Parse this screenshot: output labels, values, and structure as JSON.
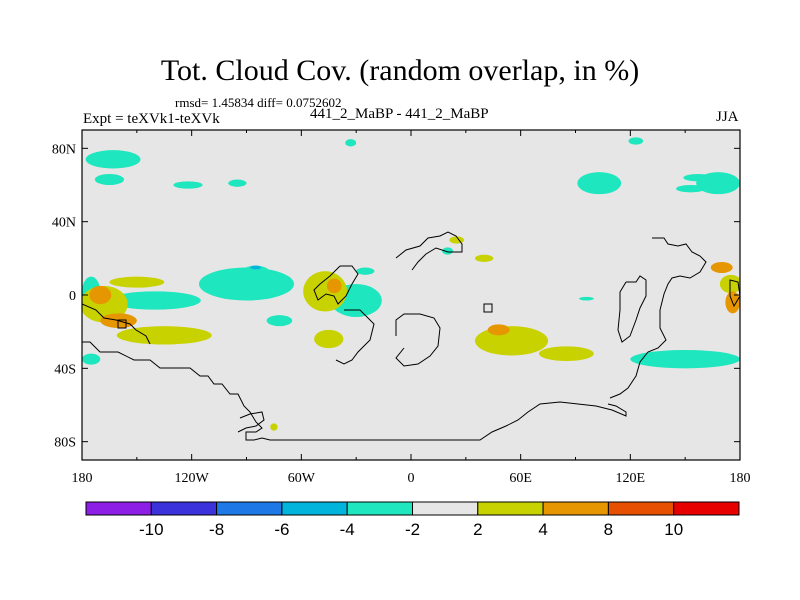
{
  "chart_data": {
    "type": "heatmap",
    "title": "Tot. Cloud Cov. (random overlap, in %)",
    "stats_text": "rmsd= 1.45834 diff= 0.0752602",
    "left_label": "Expt = teXVk1-teXVk",
    "center_label": "441_2_MaBP - 441_2_MaBP",
    "right_label": "JJA",
    "x_range": [
      -180,
      180
    ],
    "y_range": [
      -90,
      90
    ],
    "x_ticks": [
      {
        "value": -180,
        "label": "180"
      },
      {
        "value": -120,
        "label": "120W"
      },
      {
        "value": -60,
        "label": "60W"
      },
      {
        "value": 0,
        "label": "0"
      },
      {
        "value": 60,
        "label": "60E"
      },
      {
        "value": 120,
        "label": "120E"
      },
      {
        "value": 180,
        "label": "180"
      }
    ],
    "y_ticks": [
      {
        "value": 80,
        "label": "80N"
      },
      {
        "value": 40,
        "label": "40N"
      },
      {
        "value": 0,
        "label": "0"
      },
      {
        "value": -40,
        "label": "40S"
      },
      {
        "value": -80,
        "label": "80S"
      }
    ],
    "background_color": "#e6e6e6",
    "colorbar": {
      "labels": [
        "-10",
        "-8",
        "-6",
        "-4",
        "-2",
        "2",
        "4",
        "8",
        "10"
      ],
      "colors": [
        "#8c1ee6",
        "#3c32dc",
        "#1e78e6",
        "#00b4dc",
        "#1ee6be",
        "#e6e6e6",
        "#c8d200",
        "#e69600",
        "#e65000",
        "#e60000"
      ]
    },
    "anomaly_regions": [
      {
        "lon": -163,
        "lat": 74,
        "rlon": 15,
        "rlat": 5,
        "level": -3
      },
      {
        "lon": -165,
        "lat": 63,
        "rlon": 8,
        "rlat": 3,
        "level": -3
      },
      {
        "lon": -95,
        "lat": 61,
        "rlon": 5,
        "rlat": 2,
        "level": -3
      },
      {
        "lon": -122,
        "lat": 60,
        "rlon": 8,
        "rlat": 2,
        "level": -3
      },
      {
        "lon": 103,
        "lat": 61,
        "rlon": 12,
        "rlat": 6,
        "level": -3
      },
      {
        "lon": 168,
        "lat": 61,
        "rlon": 12,
        "rlat": 6,
        "level": -3
      },
      {
        "lon": 157,
        "lat": 64,
        "rlon": 8,
        "rlat": 2,
        "level": -3
      },
      {
        "lon": 153,
        "lat": 58,
        "rlon": 8,
        "rlat": 2,
        "level": -3
      },
      {
        "lon": -33,
        "lat": 83,
        "rlon": 3,
        "rlat": 2,
        "level": -3
      },
      {
        "lon": 123,
        "lat": 84,
        "rlon": 4,
        "rlat": 2,
        "level": -3
      },
      {
        "lon": -175,
        "lat": 2,
        "rlon": 5,
        "rlat": 8,
        "level": -3
      },
      {
        "lon": -140,
        "lat": -3,
        "rlon": 25,
        "rlat": 5,
        "level": -3
      },
      {
        "lon": -90,
        "lat": 6,
        "rlon": 26,
        "rlat": 9,
        "level": -3
      },
      {
        "lon": -85,
        "lat": 12,
        "rlon": 8,
        "rlat": 4,
        "level": -3
      },
      {
        "lon": -85,
        "lat": 15,
        "rlon": 3,
        "rlat": 1,
        "level": -5
      },
      {
        "lon": -30,
        "lat": -3,
        "rlon": 14,
        "rlat": 9,
        "level": -3
      },
      {
        "lon": -72,
        "lat": -14,
        "rlon": 7,
        "rlat": 3,
        "level": -3
      },
      {
        "lon": -25,
        "lat": 13,
        "rlon": 5,
        "rlat": 2,
        "level": -3
      },
      {
        "lon": 20,
        "lat": 24,
        "rlon": 3,
        "rlat": 2,
        "level": -3
      },
      {
        "lon": 150,
        "lat": -35,
        "rlon": 30,
        "rlat": 5,
        "level": -3
      },
      {
        "lon": 96,
        "lat": -2,
        "rlon": 4,
        "rlat": 1,
        "level": -3
      },
      {
        "lon": -175,
        "lat": -35,
        "rlon": 5,
        "rlat": 3,
        "level": -3
      },
      {
        "lon": -150,
        "lat": 7,
        "rlon": 15,
        "rlat": 3,
        "level": 3
      },
      {
        "lon": -168,
        "lat": -5,
        "rlon": 13,
        "rlat": 10,
        "level": 3
      },
      {
        "lon": -170,
        "lat": 0,
        "rlon": 6,
        "rlat": 5,
        "level": 5
      },
      {
        "lon": -160,
        "lat": -14,
        "rlon": 10,
        "rlat": 4,
        "level": 5
      },
      {
        "lon": -135,
        "lat": -22,
        "rlon": 26,
        "rlat": 5,
        "level": 3
      },
      {
        "lon": -47,
        "lat": 2,
        "rlon": 12,
        "rlat": 11,
        "level": 3
      },
      {
        "lon": -42,
        "lat": 5,
        "rlon": 4,
        "rlat": 4,
        "level": 5
      },
      {
        "lon": -45,
        "lat": -24,
        "rlon": 8,
        "rlat": 5,
        "level": 3
      },
      {
        "lon": 55,
        "lat": -25,
        "rlon": 20,
        "rlat": 8,
        "level": 3
      },
      {
        "lon": 48,
        "lat": -19,
        "rlon": 6,
        "rlat": 3,
        "level": 5
      },
      {
        "lon": 85,
        "lat": -32,
        "rlon": 15,
        "rlat": 4,
        "level": 3
      },
      {
        "lon": 175,
        "lat": 6,
        "rlon": 6,
        "rlat": 5,
        "level": 3
      },
      {
        "lon": 170,
        "lat": 15,
        "rlon": 6,
        "rlat": 3,
        "level": 7
      },
      {
        "lon": 176,
        "lat": -4,
        "rlon": 4,
        "rlat": 6,
        "level": 5
      },
      {
        "lon": 40,
        "lat": 20,
        "rlon": 5,
        "rlat": 2,
        "level": 3
      },
      {
        "lon": 25,
        "lat": 30,
        "rlon": 4,
        "rlat": 2,
        "level": 3
      },
      {
        "lon": -75,
        "lat": -72,
        "rlon": 2,
        "rlat": 2,
        "level": 3
      }
    ]
  }
}
